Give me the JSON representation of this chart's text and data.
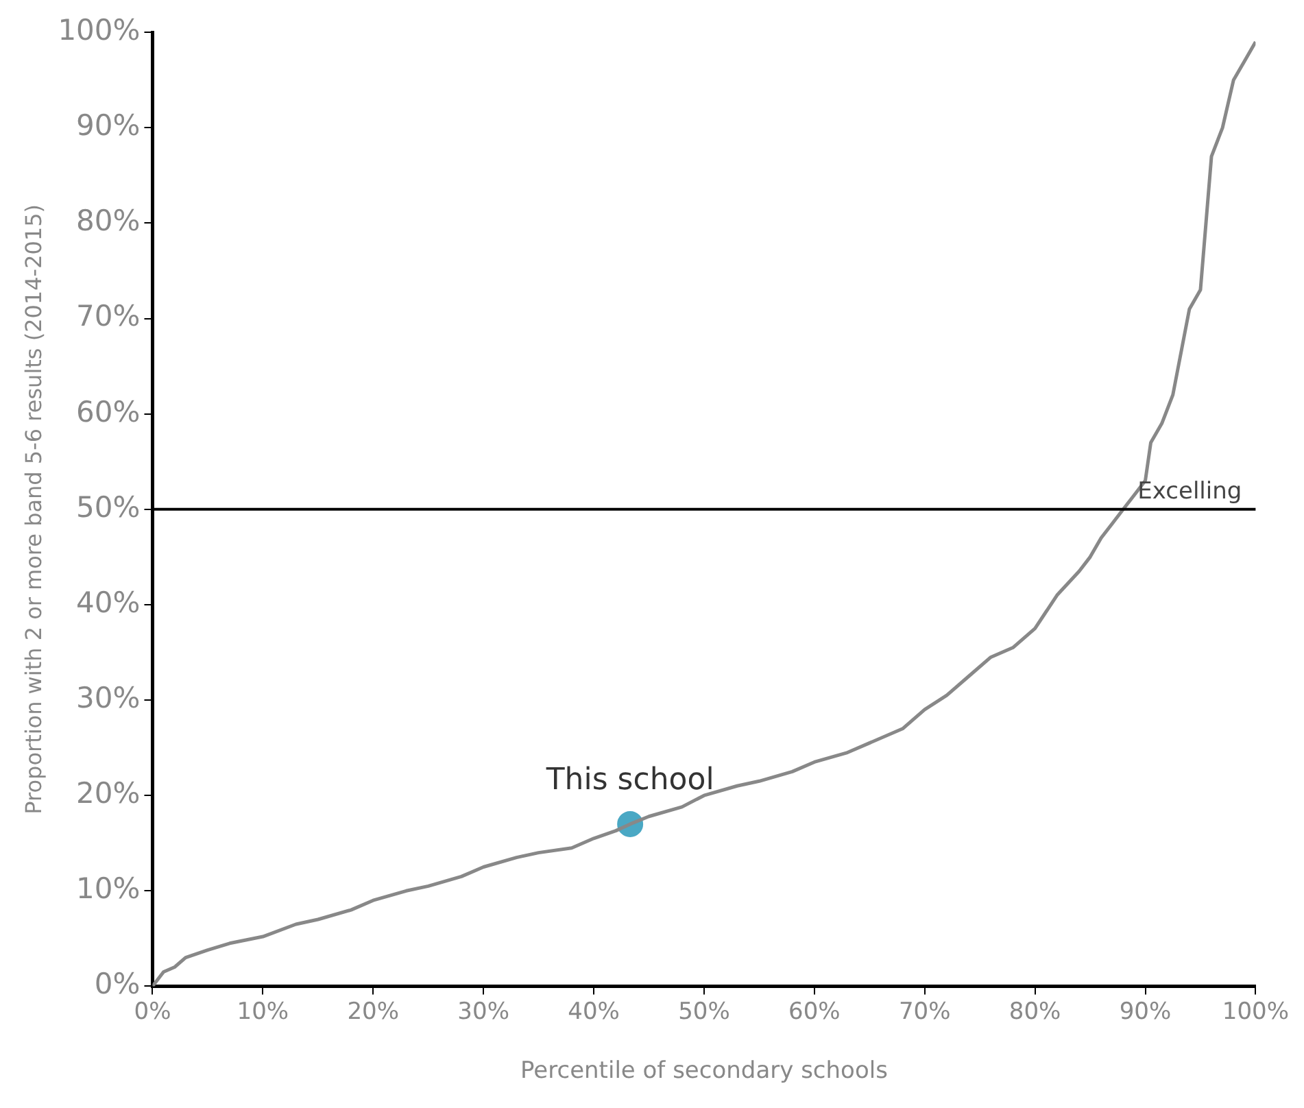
{
  "chart_data": {
    "type": "line",
    "xlabel": "Percentile of secondary schools",
    "ylabel": "Proportion with 2 or more band 5-6 results (2014-2015)",
    "xlim": [
      0,
      100
    ],
    "ylim": [
      0,
      100
    ],
    "xticks": [
      {
        "value": 0,
        "label": "0%"
      },
      {
        "value": 10,
        "label": "10%"
      },
      {
        "value": 20,
        "label": "20%"
      },
      {
        "value": 30,
        "label": "30%"
      },
      {
        "value": 40,
        "label": "40%"
      },
      {
        "value": 50,
        "label": "50%"
      },
      {
        "value": 60,
        "label": "60%"
      },
      {
        "value": 70,
        "label": "70%"
      },
      {
        "value": 80,
        "label": "80%"
      },
      {
        "value": 90,
        "label": "90%"
      },
      {
        "value": 100,
        "label": "100%"
      }
    ],
    "yticks": [
      {
        "value": 0,
        "label": "0%"
      },
      {
        "value": 10,
        "label": "10%"
      },
      {
        "value": 20,
        "label": "20%"
      },
      {
        "value": 30,
        "label": "30%"
      },
      {
        "value": 40,
        "label": "40%"
      },
      {
        "value": 50,
        "label": "50%"
      },
      {
        "value": 60,
        "label": "60%"
      },
      {
        "value": 70,
        "label": "70%"
      },
      {
        "value": 80,
        "label": "80%"
      },
      {
        "value": 90,
        "label": "90%"
      },
      {
        "value": 100,
        "label": "100%"
      }
    ],
    "series": [
      {
        "type": "line",
        "color": "#888888",
        "marker": "none",
        "x": [
          0,
          1,
          2,
          3,
          5,
          7,
          10,
          13,
          15,
          18,
          20,
          23,
          25,
          28,
          30,
          33,
          35,
          38,
          40,
          42,
          43.3,
          45,
          48,
          50,
          53,
          55,
          58,
          60,
          63,
          65,
          68,
          70,
          72,
          74,
          76,
          78,
          80,
          82,
          84,
          85,
          86,
          87,
          88,
          89,
          90,
          90.5,
          91.5,
          92.5,
          93,
          94,
          95,
          95.5,
          96,
          97,
          98,
          99,
          100
        ],
        "values": [
          0,
          1.5,
          2,
          3,
          3.8,
          4.5,
          5.2,
          6.5,
          7,
          8,
          9,
          10,
          10.5,
          11.5,
          12.5,
          13.5,
          14,
          14.5,
          15.5,
          16.3,
          17,
          17.8,
          18.8,
          20,
          21,
          21.5,
          22.5,
          23.5,
          24.5,
          25.5,
          27,
          29,
          30.5,
          32.5,
          34.5,
          35.5,
          37.5,
          41,
          43.5,
          45,
          47,
          48.5,
          50,
          51.5,
          53,
          57,
          59,
          62,
          65,
          71,
          73,
          80,
          87,
          90,
          95,
          97,
          99
        ]
      },
      {
        "type": "scatter",
        "color": "#4aa8c4",
        "marker": "circle",
        "x": [
          43.3
        ],
        "values": [
          17
        ]
      }
    ],
    "ref_lines": [
      {
        "axis": "y",
        "value": 50,
        "label": "Excelling",
        "color": "#000000"
      }
    ],
    "annotations": [
      {
        "text": "This school",
        "x": 43.3,
        "y": 17
      }
    ]
  }
}
